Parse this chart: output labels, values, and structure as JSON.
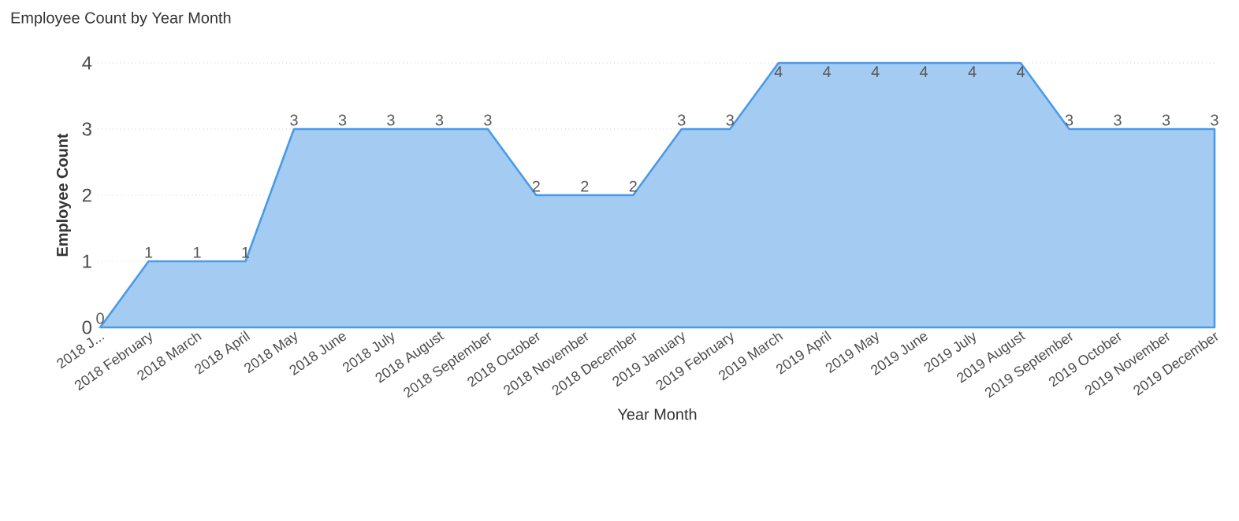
{
  "chart_data": {
    "type": "area",
    "title": "Employee Count by Year Month",
    "xlabel": "Year Month",
    "ylabel": "Employee Count",
    "categories": [
      "2018 J...",
      "2018 February",
      "2018 March",
      "2018 April",
      "2018 May",
      "2018 June",
      "2018 July",
      "2018 August",
      "2018 September",
      "2018 October",
      "2018 November",
      "2018 December",
      "2019 January",
      "2019 February",
      "2019 March",
      "2019 April",
      "2019 May",
      "2019 June",
      "2019 July",
      "2019 August",
      "2019 September",
      "2019 October",
      "2019 November",
      "2019 December"
    ],
    "values": [
      0,
      1,
      1,
      1,
      3,
      3,
      3,
      3,
      3,
      2,
      2,
      2,
      3,
      3,
      4,
      4,
      4,
      4,
      4,
      4,
      3,
      3,
      3,
      3
    ],
    "color": "#4a9ae8",
    "ylim": [
      0,
      4
    ],
    "yticks": [
      0,
      1,
      2,
      3,
      4
    ],
    "grid": "y",
    "data_labels": true
  }
}
